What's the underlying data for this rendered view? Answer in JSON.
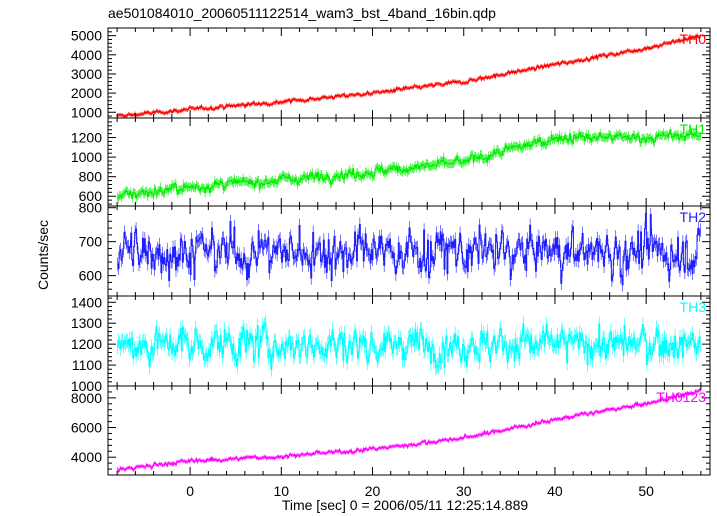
{
  "chart_data": {
    "type": "line",
    "title": "ae501084010_20060511122514_wam3_bst_4band_16bin.qdp",
    "xlabel": "Time [sec] 0 = 2006/05/11 12:25:14.889",
    "ylabel": "Counts/sec",
    "xlim": [
      -9,
      57
    ],
    "x_ticks": [
      0,
      10,
      20,
      30,
      40,
      50
    ],
    "x_tick_labels": [
      "0",
      "10",
      "20",
      "30",
      "40",
      "50"
    ],
    "x_minor_step": 2,
    "n_bins": 600,
    "panels": [
      {
        "name": "TH0",
        "color": "#ff0000",
        "ylim": [
          700,
          5400
        ],
        "y_ticks": [
          1000,
          2000,
          3000,
          4000,
          5000
        ],
        "y_tick_labels": [
          "1000",
          "2000",
          "3000",
          "4000",
          "5000"
        ],
        "trend": [
          [
            -8,
            800
          ],
          [
            0,
            1150
          ],
          [
            10,
            1550
          ],
          [
            20,
            2000
          ],
          [
            30,
            2600
          ],
          [
            40,
            3500
          ],
          [
            50,
            4350
          ],
          [
            56,
            5000
          ]
        ],
        "noise": 80,
        "errbar": 100
      },
      {
        "name": "TH1",
        "color": "#00ee00",
        "ylim": [
          500,
          1400
        ],
        "y_ticks": [
          600,
          800,
          1000,
          1200
        ],
        "y_tick_labels": [
          "600",
          "800",
          "1000",
          "1200"
        ],
        "trend": [
          [
            -8,
            610
          ],
          [
            0,
            690
          ],
          [
            10,
            770
          ],
          [
            20,
            850
          ],
          [
            30,
            950
          ],
          [
            40,
            1200
          ],
          [
            50,
            1200
          ],
          [
            56,
            1230
          ]
        ],
        "noise": 40,
        "errbar": 45
      },
      {
        "name": "TH2",
        "color": "#2020ff",
        "ylim": [
          540,
          805
        ],
        "y_ticks": [
          600,
          700,
          800
        ],
        "y_tick_labels": [
          "600",
          "700",
          "800"
        ],
        "trend": [
          [
            -8,
            670
          ],
          [
            56,
            670
          ]
        ],
        "noise": 55,
        "errbar": 20
      },
      {
        "name": "TH3",
        "color": "#00ffff",
        "ylim": [
          1000,
          1430
        ],
        "y_ticks": [
          1000,
          1100,
          1200,
          1300,
          1400
        ],
        "y_tick_labels": [
          "1000",
          "1100",
          "1200",
          "1300",
          "1400"
        ],
        "trend": [
          [
            -8,
            1200
          ],
          [
            56,
            1200
          ]
        ],
        "noise": 70,
        "errbar": 35
      },
      {
        "name": "TH0123",
        "color": "#ff00ff",
        "ylim": [
          2800,
          8800
        ],
        "y_ticks": [
          4000,
          6000,
          8000
        ],
        "y_tick_labels": [
          "4000",
          "6000",
          "8000"
        ],
        "trend": [
          [
            -8,
            3150
          ],
          [
            0,
            3750
          ],
          [
            10,
            4050
          ],
          [
            20,
            4550
          ],
          [
            30,
            5300
          ],
          [
            40,
            6550
          ],
          [
            50,
            7600
          ],
          [
            56,
            8500
          ]
        ],
        "noise": 110,
        "errbar": 120
      }
    ]
  }
}
